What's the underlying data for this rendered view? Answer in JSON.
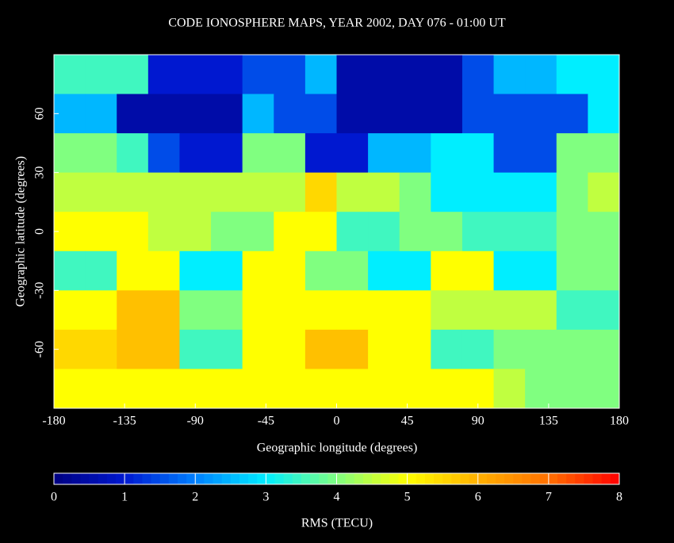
{
  "chart_data": {
    "type": "heatmap",
    "title": "CODE IONOSPHERE MAPS, YEAR 2002, DAY 076 - 01:00 UT",
    "xlabel": "Geographic longitude (degrees)",
    "ylabel": "Geographic latitude (degrees)",
    "colorbar_label": "RMS (TECU)",
    "xlim": [
      -180,
      180
    ],
    "ylim": [
      -90,
      90
    ],
    "xticks": [
      -180,
      -135,
      -90,
      -45,
      0,
      45,
      90,
      135,
      180
    ],
    "yticks": [
      -60,
      -30,
      0,
      30,
      60
    ],
    "clim": [
      0,
      8
    ],
    "cticks": [
      0,
      1,
      2,
      3,
      4,
      5,
      6,
      7,
      8
    ],
    "colormap": [
      "#000080",
      "#0018d0",
      "#0080ff",
      "#00eeff",
      "#80ff80",
      "#ffff00",
      "#ffb000",
      "#ff7000",
      "#ff0000"
    ],
    "values": [
      [
        3.5,
        3.5,
        3.5,
        1,
        1,
        1,
        1.5,
        1.5,
        2.5,
        0.5,
        0.5,
        0.5,
        0.5,
        1.5,
        2.5,
        2.5,
        3,
        3
      ],
      [
        2.5,
        2.5,
        0.5,
        0.5,
        0.5,
        0.5,
        2.5,
        1.5,
        1.5,
        0.5,
        0.5,
        0.5,
        0.5,
        1.5,
        1.5,
        1.5,
        1.5,
        3
      ],
      [
        4,
        4,
        3.5,
        1.5,
        1,
        1,
        4,
        4,
        1,
        1,
        2.5,
        2.5,
        3,
        3,
        1.5,
        1.5,
        4,
        4
      ],
      [
        4.5,
        4.5,
        4.5,
        4.5,
        4.5,
        4.5,
        4.5,
        4.5,
        5.5,
        4.5,
        4.5,
        4,
        3,
        3,
        3,
        3,
        4,
        4.5
      ],
      [
        5,
        5,
        5,
        4.5,
        4.5,
        4,
        4,
        5,
        5,
        3.5,
        3.5,
        4,
        4,
        3.5,
        3.5,
        3.5,
        4,
        4
      ],
      [
        3.5,
        3.5,
        5,
        5,
        3,
        3,
        5,
        5,
        4,
        4,
        3,
        3,
        5,
        5,
        3,
        3,
        4,
        4
      ],
      [
        5,
        5,
        5.8,
        5.8,
        4,
        4,
        5,
        5,
        5,
        5,
        5,
        5,
        4.5,
        4.5,
        4.5,
        4.5,
        3.5,
        3.5
      ],
      [
        5.5,
        5.5,
        5.8,
        5.8,
        3.5,
        3.5,
        5,
        5,
        5.8,
        5.8,
        5,
        5,
        3.5,
        3.5,
        4,
        4,
        4,
        4
      ],
      [
        5,
        5,
        5,
        5,
        5,
        5,
        5,
        5,
        5,
        5,
        5,
        5,
        5,
        5,
        4.5,
        4,
        4,
        4
      ]
    ]
  }
}
